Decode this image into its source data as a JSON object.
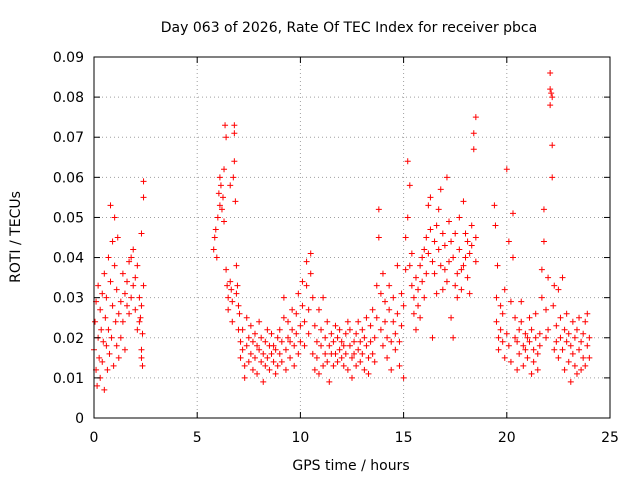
{
  "chart_data": {
    "type": "scatter",
    "title": "Day 063 of 2026, Rate Of TEC Index for receiver pbca",
    "xlabel": "GPS time / hours",
    "ylabel": "ROTI / TECUs",
    "xlim": [
      0,
      25
    ],
    "ylim": [
      0,
      0.09
    ],
    "x_ticks": [
      "0",
      "5",
      "10",
      "15",
      "20",
      "25"
    ],
    "y_ticks": [
      "0",
      "0.01",
      "0.02",
      "0.03",
      "0.04",
      "0.05",
      "0.06",
      "0.07",
      "0.08",
      "0.09"
    ],
    "grid": true,
    "marker": "plus",
    "series_color": "#ff0000",
    "points": [
      [
        0.0,
        0.017
      ],
      [
        0.05,
        0.024
      ],
      [
        0.1,
        0.012
      ],
      [
        0.1,
        0.029
      ],
      [
        0.15,
        0.008
      ],
      [
        0.2,
        0.02
      ],
      [
        0.2,
        0.033
      ],
      [
        0.25,
        0.015
      ],
      [
        0.3,
        0.027
      ],
      [
        0.3,
        0.01
      ],
      [
        0.35,
        0.022
      ],
      [
        0.4,
        0.031
      ],
      [
        0.4,
        0.014
      ],
      [
        0.45,
        0.019
      ],
      [
        0.5,
        0.036
      ],
      [
        0.5,
        0.007
      ],
      [
        0.55,
        0.025
      ],
      [
        0.6,
        0.018
      ],
      [
        0.6,
        0.03
      ],
      [
        0.65,
        0.012
      ],
      [
        0.7,
        0.04
      ],
      [
        0.7,
        0.022
      ],
      [
        0.75,
        0.016
      ],
      [
        0.8,
        0.034
      ],
      [
        0.8,
        0.053
      ],
      [
        0.85,
        0.02
      ],
      [
        0.9,
        0.044
      ],
      [
        0.9,
        0.028
      ],
      [
        0.95,
        0.013
      ],
      [
        1.0,
        0.05
      ],
      [
        1.0,
        0.038
      ],
      [
        1.05,
        0.024
      ],
      [
        1.1,
        0.018
      ],
      [
        1.1,
        0.032
      ],
      [
        1.15,
        0.045
      ],
      [
        1.2,
        0.026
      ],
      [
        1.2,
        0.015
      ],
      [
        1.3,
        0.029
      ],
      [
        1.3,
        0.02
      ],
      [
        1.4,
        0.036
      ],
      [
        1.4,
        0.024
      ],
      [
        1.5,
        0.031
      ],
      [
        1.5,
        0.017
      ],
      [
        1.6,
        0.034
      ],
      [
        1.6,
        0.028
      ],
      [
        1.7,
        0.039
      ],
      [
        1.7,
        0.026
      ],
      [
        1.8,
        0.04
      ],
      [
        1.8,
        0.03
      ],
      [
        1.9,
        0.042
      ],
      [
        1.9,
        0.033
      ],
      [
        2.0,
        0.035
      ],
      [
        2.0,
        0.027
      ],
      [
        2.1,
        0.038
      ],
      [
        2.1,
        0.022
      ],
      [
        2.2,
        0.03
      ],
      [
        2.2,
        0.024
      ],
      [
        2.25,
        0.025
      ],
      [
        2.3,
        0.028
      ],
      [
        2.3,
        0.046
      ],
      [
        2.3,
        0.017
      ],
      [
        2.35,
        0.021
      ],
      [
        2.4,
        0.033
      ],
      [
        2.4,
        0.059
      ],
      [
        2.4,
        0.055
      ],
      [
        2.35,
        0.013
      ],
      [
        2.3,
        0.015
      ],
      [
        5.8,
        0.042
      ],
      [
        5.85,
        0.045
      ],
      [
        5.9,
        0.047
      ],
      [
        5.95,
        0.04
      ],
      [
        6.0,
        0.05
      ],
      [
        6.05,
        0.056
      ],
      [
        6.1,
        0.053
      ],
      [
        6.1,
        0.06
      ],
      [
        6.15,
        0.058
      ],
      [
        6.2,
        0.052
      ],
      [
        6.25,
        0.055
      ],
      [
        6.3,
        0.062
      ],
      [
        6.3,
        0.049
      ],
      [
        6.35,
        0.073
      ],
      [
        6.4,
        0.07
      ],
      [
        6.4,
        0.037
      ],
      [
        6.45,
        0.033
      ],
      [
        6.5,
        0.03
      ],
      [
        6.5,
        0.027
      ],
      [
        6.6,
        0.058
      ],
      [
        6.6,
        0.034
      ],
      [
        6.65,
        0.032
      ],
      [
        6.7,
        0.029
      ],
      [
        6.7,
        0.024
      ],
      [
        6.75,
        0.06
      ],
      [
        6.8,
        0.073
      ],
      [
        6.8,
        0.071
      ],
      [
        6.8,
        0.064
      ],
      [
        6.85,
        0.054
      ],
      [
        6.9,
        0.038
      ],
      [
        6.9,
        0.031
      ],
      [
        6.95,
        0.033
      ],
      [
        7.0,
        0.028
      ],
      [
        7.0,
        0.022
      ],
      [
        7.05,
        0.026
      ],
      [
        7.1,
        0.019
      ],
      [
        7.1,
        0.015
      ],
      [
        7.2,
        0.017
      ],
      [
        7.2,
        0.022
      ],
      [
        7.3,
        0.013
      ],
      [
        7.3,
        0.01
      ],
      [
        7.4,
        0.018
      ],
      [
        7.4,
        0.025
      ],
      [
        7.5,
        0.014
      ],
      [
        7.5,
        0.02
      ],
      [
        7.6,
        0.023
      ],
      [
        7.6,
        0.016
      ],
      [
        7.7,
        0.012
      ],
      [
        7.7,
        0.019
      ],
      [
        7.8,
        0.021
      ],
      [
        7.8,
        0.015
      ],
      [
        7.9,
        0.018
      ],
      [
        7.9,
        0.011
      ],
      [
        8.0,
        0.024
      ],
      [
        8.0,
        0.017
      ],
      [
        8.1,
        0.014
      ],
      [
        8.1,
        0.02
      ],
      [
        8.2,
        0.009
      ],
      [
        8.2,
        0.016
      ],
      [
        8.3,
        0.019
      ],
      [
        8.3,
        0.013
      ],
      [
        8.4,
        0.022
      ],
      [
        8.4,
        0.015
      ],
      [
        8.5,
        0.018
      ],
      [
        8.5,
        0.012
      ],
      [
        8.6,
        0.016
      ],
      [
        8.6,
        0.021
      ],
      [
        8.7,
        0.014
      ],
      [
        8.7,
        0.018
      ],
      [
        8.8,
        0.011
      ],
      [
        8.8,
        0.017
      ],
      [
        8.9,
        0.02
      ],
      [
        8.9,
        0.013
      ],
      [
        9.0,
        0.016
      ],
      [
        9.0,
        0.022
      ],
      [
        9.1,
        0.014
      ],
      [
        9.1,
        0.019
      ],
      [
        9.2,
        0.025
      ],
      [
        9.2,
        0.03
      ],
      [
        9.3,
        0.017
      ],
      [
        9.3,
        0.012
      ],
      [
        9.4,
        0.02
      ],
      [
        9.4,
        0.024
      ],
      [
        9.5,
        0.015
      ],
      [
        9.5,
        0.019
      ],
      [
        9.6,
        0.022
      ],
      [
        9.6,
        0.027
      ],
      [
        9.7,
        0.018
      ],
      [
        9.7,
        0.013
      ],
      [
        9.8,
        0.021
      ],
      [
        9.8,
        0.026
      ],
      [
        9.9,
        0.031
      ],
      [
        9.9,
        0.016
      ],
      [
        10.0,
        0.023
      ],
      [
        10.0,
        0.019
      ],
      [
        10.1,
        0.028
      ],
      [
        10.1,
        0.034
      ],
      [
        10.2,
        0.018
      ],
      [
        10.2,
        0.024
      ],
      [
        10.3,
        0.033
      ],
      [
        10.3,
        0.039
      ],
      [
        10.4,
        0.021
      ],
      [
        10.4,
        0.027
      ],
      [
        10.5,
        0.036
      ],
      [
        10.5,
        0.041
      ],
      [
        10.6,
        0.03
      ],
      [
        10.6,
        0.016
      ],
      [
        10.7,
        0.023
      ],
      [
        10.7,
        0.012
      ],
      [
        10.8,
        0.019
      ],
      [
        10.8,
        0.015
      ],
      [
        10.9,
        0.027
      ],
      [
        10.9,
        0.011
      ],
      [
        11.0,
        0.018
      ],
      [
        11.0,
        0.022
      ],
      [
        11.1,
        0.013
      ],
      [
        11.1,
        0.03
      ],
      [
        11.2,
        0.016
      ],
      [
        11.2,
        0.02
      ],
      [
        11.3,
        0.024
      ],
      [
        11.3,
        0.014
      ],
      [
        11.4,
        0.018
      ],
      [
        11.4,
        0.009
      ],
      [
        11.5,
        0.021
      ],
      [
        11.5,
        0.016
      ],
      [
        11.6,
        0.013
      ],
      [
        11.6,
        0.019
      ],
      [
        11.7,
        0.023
      ],
      [
        11.7,
        0.016
      ],
      [
        11.8,
        0.02
      ],
      [
        11.8,
        0.014
      ],
      [
        11.9,
        0.017
      ],
      [
        11.9,
        0.022
      ],
      [
        12.0,
        0.015
      ],
      [
        12.0,
        0.019
      ],
      [
        12.1,
        0.013
      ],
      [
        12.1,
        0.018
      ],
      [
        12.2,
        0.021
      ],
      [
        12.2,
        0.016
      ],
      [
        12.3,
        0.024
      ],
      [
        12.3,
        0.012
      ],
      [
        12.4,
        0.018
      ],
      [
        12.4,
        0.022
      ],
      [
        12.5,
        0.015
      ],
      [
        12.5,
        0.01
      ],
      [
        12.6,
        0.019
      ],
      [
        12.6,
        0.016
      ],
      [
        12.7,
        0.021
      ],
      [
        12.7,
        0.013
      ],
      [
        12.8,
        0.017
      ],
      [
        12.8,
        0.024
      ],
      [
        12.9,
        0.014
      ],
      [
        12.9,
        0.019
      ],
      [
        13.0,
        0.022
      ],
      [
        13.0,
        0.016
      ],
      [
        13.1,
        0.012
      ],
      [
        13.1,
        0.02
      ],
      [
        13.2,
        0.018
      ],
      [
        13.2,
        0.025
      ],
      [
        13.3,
        0.015
      ],
      [
        13.3,
        0.011
      ],
      [
        13.4,
        0.019
      ],
      [
        13.4,
        0.023
      ],
      [
        13.5,
        0.016
      ],
      [
        13.5,
        0.027
      ],
      [
        13.6,
        0.02
      ],
      [
        13.6,
        0.014
      ],
      [
        13.7,
        0.033
      ],
      [
        13.7,
        0.025
      ],
      [
        13.8,
        0.045
      ],
      [
        13.8,
        0.052
      ],
      [
        13.9,
        0.031
      ],
      [
        13.9,
        0.022
      ],
      [
        14.0,
        0.036
      ],
      [
        14.0,
        0.018
      ],
      [
        14.1,
        0.029
      ],
      [
        14.1,
        0.024
      ],
      [
        14.2,
        0.02
      ],
      [
        14.2,
        0.015
      ],
      [
        14.3,
        0.027
      ],
      [
        14.3,
        0.033
      ],
      [
        14.4,
        0.019
      ],
      [
        14.4,
        0.012
      ],
      [
        14.5,
        0.024
      ],
      [
        14.5,
        0.03
      ],
      [
        14.6,
        0.017
      ],
      [
        14.6,
        0.021
      ],
      [
        14.7,
        0.038
      ],
      [
        14.7,
        0.026
      ],
      [
        14.8,
        0.013
      ],
      [
        14.8,
        0.019
      ],
      [
        14.9,
        0.031
      ],
      [
        14.9,
        0.023
      ],
      [
        15.0,
        0.01
      ],
      [
        15.0,
        0.028
      ],
      [
        15.1,
        0.037
      ],
      [
        15.1,
        0.045
      ],
      [
        15.2,
        0.05
      ],
      [
        15.2,
        0.064
      ],
      [
        15.3,
        0.058
      ],
      [
        15.3,
        0.038
      ],
      [
        15.4,
        0.041
      ],
      [
        15.4,
        0.033
      ],
      [
        15.5,
        0.03
      ],
      [
        15.5,
        0.026
      ],
      [
        15.6,
        0.035
      ],
      [
        15.6,
        0.022
      ],
      [
        15.7,
        0.032
      ],
      [
        15.7,
        0.028
      ],
      [
        15.8,
        0.038
      ],
      [
        15.8,
        0.025
      ],
      [
        15.9,
        0.04
      ],
      [
        15.9,
        0.034
      ],
      [
        16.0,
        0.042
      ],
      [
        16.0,
        0.03
      ],
      [
        16.1,
        0.045
      ],
      [
        16.1,
        0.036
      ],
      [
        16.2,
        0.053
      ],
      [
        16.2,
        0.041
      ],
      [
        16.3,
        0.055
      ],
      [
        16.3,
        0.047
      ],
      [
        16.4,
        0.039
      ],
      [
        16.4,
        0.02
      ],
      [
        16.5,
        0.044
      ],
      [
        16.5,
        0.036
      ],
      [
        16.6,
        0.048
      ],
      [
        16.6,
        0.031
      ],
      [
        16.7,
        0.052
      ],
      [
        16.7,
        0.042
      ],
      [
        16.8,
        0.057
      ],
      [
        16.8,
        0.038
      ],
      [
        16.9,
        0.046
      ],
      [
        16.9,
        0.032
      ],
      [
        17.0,
        0.043
      ],
      [
        17.0,
        0.037
      ],
      [
        17.1,
        0.06
      ],
      [
        17.1,
        0.034
      ],
      [
        17.2,
        0.049
      ],
      [
        17.2,
        0.039
      ],
      [
        17.3,
        0.044
      ],
      [
        17.3,
        0.025
      ],
      [
        17.4,
        0.04
      ],
      [
        17.4,
        0.02
      ],
      [
        17.5,
        0.046
      ],
      [
        17.5,
        0.033
      ],
      [
        17.6,
        0.036
      ],
      [
        17.6,
        0.03
      ],
      [
        17.7,
        0.05
      ],
      [
        17.7,
        0.042
      ],
      [
        17.8,
        0.032
      ],
      [
        17.8,
        0.037
      ],
      [
        17.9,
        0.054
      ],
      [
        17.9,
        0.038
      ],
      [
        18.0,
        0.046
      ],
      [
        18.0,
        0.04
      ],
      [
        18.1,
        0.044
      ],
      [
        18.1,
        0.035
      ],
      [
        18.2,
        0.041
      ],
      [
        18.2,
        0.031
      ],
      [
        18.3,
        0.048
      ],
      [
        18.3,
        0.043
      ],
      [
        18.4,
        0.071
      ],
      [
        18.4,
        0.067
      ],
      [
        18.5,
        0.075
      ],
      [
        18.5,
        0.039
      ],
      [
        18.5,
        0.045
      ],
      [
        19.4,
        0.053
      ],
      [
        19.45,
        0.048
      ],
      [
        19.5,
        0.03
      ],
      [
        19.5,
        0.024
      ],
      [
        19.55,
        0.038
      ],
      [
        19.6,
        0.02
      ],
      [
        19.6,
        0.017
      ],
      [
        19.7,
        0.028
      ],
      [
        19.7,
        0.022
      ],
      [
        19.8,
        0.019
      ],
      [
        19.8,
        0.026
      ],
      [
        19.9,
        0.015
      ],
      [
        19.9,
        0.032
      ],
      [
        20.0,
        0.062
      ],
      [
        20.0,
        0.021
      ],
      [
        20.1,
        0.018
      ],
      [
        20.1,
        0.044
      ],
      [
        20.2,
        0.029
      ],
      [
        20.2,
        0.014
      ],
      [
        20.3,
        0.051
      ],
      [
        20.3,
        0.04
      ],
      [
        20.4,
        0.02
      ],
      [
        20.4,
        0.025
      ],
      [
        20.5,
        0.012
      ],
      [
        20.5,
        0.019
      ],
      [
        20.6,
        0.022
      ],
      [
        20.6,
        0.016
      ],
      [
        20.7,
        0.024
      ],
      [
        20.7,
        0.029
      ],
      [
        20.8,
        0.018
      ],
      [
        20.8,
        0.013
      ],
      [
        20.9,
        0.021
      ],
      [
        20.9,
        0.017
      ],
      [
        21.0,
        0.02
      ],
      [
        21.0,
        0.015
      ],
      [
        21.1,
        0.025
      ],
      [
        21.1,
        0.019
      ],
      [
        21.2,
        0.011
      ],
      [
        21.2,
        0.022
      ],
      [
        21.3,
        0.017
      ],
      [
        21.3,
        0.014
      ],
      [
        21.4,
        0.02
      ],
      [
        21.4,
        0.026
      ],
      [
        21.5,
        0.016
      ],
      [
        21.5,
        0.012
      ],
      [
        21.6,
        0.021
      ],
      [
        21.6,
        0.018
      ],
      [
        21.7,
        0.03
      ],
      [
        21.7,
        0.037
      ],
      [
        21.8,
        0.044
      ],
      [
        21.8,
        0.052
      ],
      [
        21.9,
        0.027
      ],
      [
        21.9,
        0.02
      ],
      [
        22.0,
        0.035
      ],
      [
        22.0,
        0.022
      ],
      [
        22.1,
        0.086
      ],
      [
        22.1,
        0.082
      ],
      [
        22.1,
        0.078
      ],
      [
        22.15,
        0.081
      ],
      [
        22.2,
        0.08
      ],
      [
        22.2,
        0.068
      ],
      [
        22.2,
        0.06
      ],
      [
        22.25,
        0.028
      ],
      [
        22.3,
        0.017
      ],
      [
        22.3,
        0.033
      ],
      [
        22.4,
        0.023
      ],
      [
        22.4,
        0.019
      ],
      [
        22.5,
        0.032
      ],
      [
        22.5,
        0.015
      ],
      [
        22.6,
        0.025
      ],
      [
        22.6,
        0.02
      ],
      [
        22.7,
        0.017
      ],
      [
        22.7,
        0.035
      ],
      [
        22.8,
        0.012
      ],
      [
        22.8,
        0.022
      ],
      [
        22.9,
        0.019
      ],
      [
        22.9,
        0.026
      ],
      [
        23.0,
        0.014
      ],
      [
        23.0,
        0.021
      ],
      [
        23.1,
        0.018
      ],
      [
        23.1,
        0.009
      ],
      [
        23.2,
        0.024
      ],
      [
        23.2,
        0.016
      ],
      [
        23.3,
        0.02
      ],
      [
        23.3,
        0.013
      ],
      [
        23.4,
        0.011
      ],
      [
        23.4,
        0.022
      ],
      [
        23.5,
        0.017
      ],
      [
        23.5,
        0.025
      ],
      [
        23.6,
        0.012
      ],
      [
        23.6,
        0.019
      ],
      [
        23.7,
        0.015
      ],
      [
        23.7,
        0.021
      ],
      [
        23.8,
        0.013
      ],
      [
        23.8,
        0.024
      ],
      [
        23.9,
        0.018
      ],
      [
        23.9,
        0.026
      ],
      [
        24.0,
        0.02
      ],
      [
        24.0,
        0.015
      ]
    ]
  }
}
